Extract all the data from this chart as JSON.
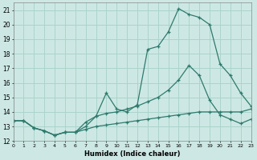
{
  "xlabel": "Humidex (Indice chaleur)",
  "bg_color": "#cde8e4",
  "grid_color": "#aad4cc",
  "line_color": "#2e7a6e",
  "xlim": [
    0,
    23
  ],
  "ylim": [
    12,
    21.5
  ],
  "xticks": [
    0,
    1,
    2,
    3,
    4,
    5,
    6,
    7,
    8,
    9,
    10,
    11,
    12,
    13,
    14,
    15,
    16,
    17,
    18,
    19,
    20,
    21,
    22,
    23
  ],
  "yticks": [
    12,
    13,
    14,
    15,
    16,
    17,
    18,
    19,
    20,
    21
  ],
  "line1_x": [
    0,
    1,
    2,
    3,
    4,
    5,
    6,
    7,
    8,
    9,
    10,
    11,
    12,
    13,
    14,
    15,
    16,
    17,
    18,
    19,
    20,
    21,
    22,
    23
  ],
  "line1_y": [
    13.4,
    13.4,
    12.9,
    12.7,
    12.4,
    12.6,
    12.6,
    13.3,
    13.7,
    15.3,
    14.2,
    14.0,
    14.5,
    18.3,
    18.5,
    19.5,
    21.1,
    20.7,
    20.5,
    20.0,
    17.3,
    16.5,
    15.3,
    14.4
  ],
  "line2_x": [
    0,
    1,
    2,
    3,
    4,
    5,
    6,
    7,
    8,
    9,
    10,
    11,
    12,
    13,
    14,
    15,
    16,
    17,
    18,
    19,
    20,
    21,
    22,
    23
  ],
  "line2_y": [
    13.4,
    13.4,
    12.9,
    12.7,
    12.4,
    12.6,
    12.6,
    13.0,
    13.7,
    13.9,
    14.0,
    14.2,
    14.4,
    14.7,
    15.0,
    15.5,
    16.2,
    17.2,
    16.5,
    14.8,
    13.8,
    13.5,
    13.2,
    13.5
  ],
  "line3_x": [
    0,
    1,
    2,
    3,
    4,
    5,
    6,
    7,
    8,
    9,
    10,
    11,
    12,
    13,
    14,
    15,
    16,
    17,
    18,
    19,
    20,
    21,
    22,
    23
  ],
  "line3_y": [
    13.4,
    13.4,
    12.9,
    12.7,
    12.4,
    12.6,
    12.6,
    12.8,
    13.0,
    13.1,
    13.2,
    13.3,
    13.4,
    13.5,
    13.6,
    13.7,
    13.8,
    13.9,
    14.0,
    14.0,
    14.0,
    14.0,
    14.0,
    14.2
  ]
}
